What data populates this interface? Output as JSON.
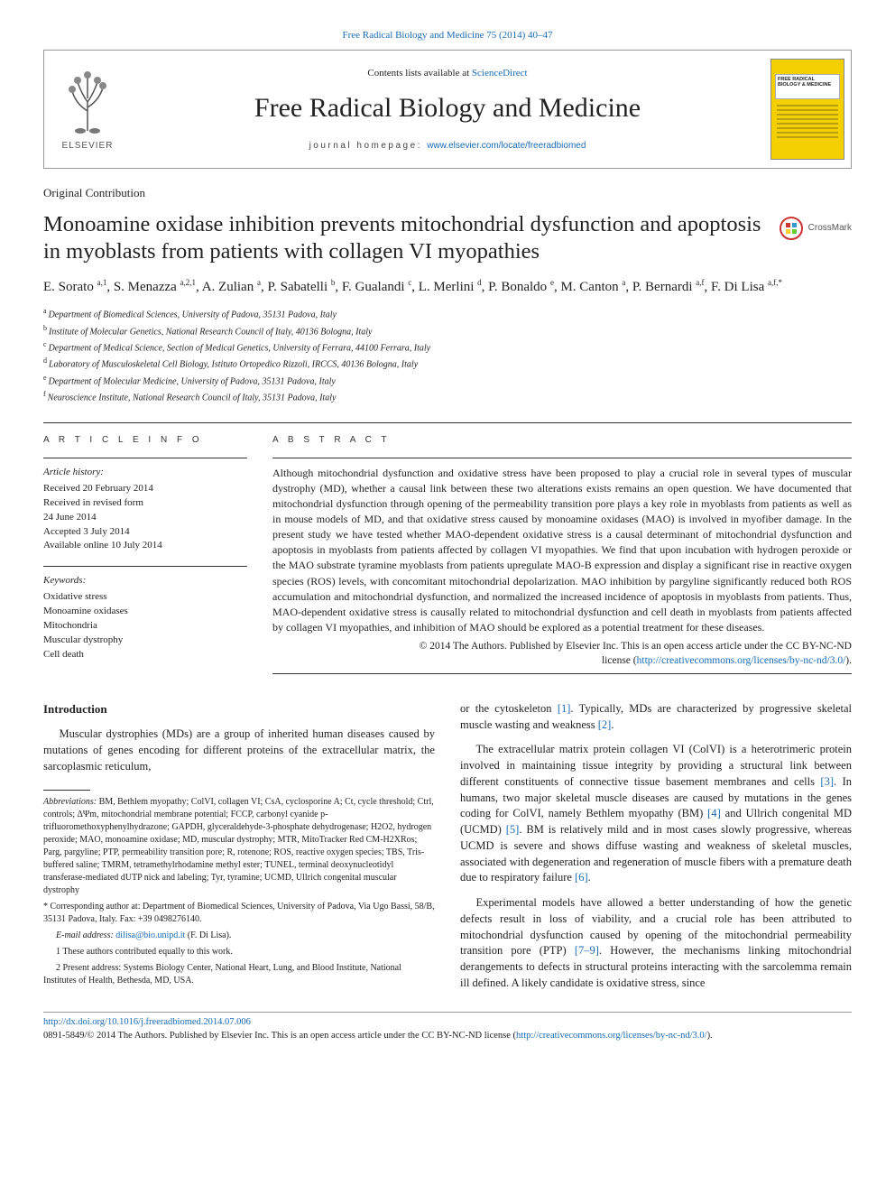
{
  "top_link": {
    "text": "Free Radical Biology and Medicine 75 (2014) 40–47"
  },
  "masthead": {
    "contents_prefix": "Contents lists available at ",
    "contents_link": "ScienceDirect",
    "journal_name": "Free Radical Biology and Medicine",
    "homepage_prefix": "journal homepage: ",
    "homepage_link": "www.elsevier.com/locate/freeradbiomed",
    "publisher": "ELSEVIER",
    "cover_text": "FREE RADICAL BIOLOGY & MEDICINE"
  },
  "article_type": "Original Contribution",
  "title": "Monoamine oxidase inhibition prevents mitochondrial dysfunction and apoptosis in myoblasts from patients with collagen VI myopathies",
  "crossmark": "CrossMark",
  "authors_html": "E. Sorato <sup>a,1</sup>, S. Menazza <sup>a,2,1</sup>, A. Zulian <sup>a</sup>, P. Sabatelli <sup>b</sup>, F. Gualandi <sup>c</sup>, L. Merlini <sup>d</sup>, P. Bonaldo <sup>e</sup>, M. Canton <sup>a</sup>, P. Bernardi <sup>a,f</sup>, F. Di Lisa <sup>a,f,*</sup>",
  "affiliations": [
    {
      "sup": "a",
      "text": "Department of Biomedical Sciences, University of Padova, 35131 Padova, Italy"
    },
    {
      "sup": "b",
      "text": "Institute of Molecular Genetics, National Research Council of Italy, 40136 Bologna, Italy"
    },
    {
      "sup": "c",
      "text": "Department of Medical Science, Section of Medical Genetics, University of Ferrara, 44100 Ferrara, Italy"
    },
    {
      "sup": "d",
      "text": "Laboratory of Musculoskeletal Cell Biology, Istituto Ortopedico Rizzoli, IRCCS, 40136 Bologna, Italy"
    },
    {
      "sup": "e",
      "text": "Department of Molecular Medicine, University of Padova, 35131 Padova, Italy"
    },
    {
      "sup": "f",
      "text": "Neuroscience Institute, National Research Council of Italy, 35131 Padova, Italy"
    }
  ],
  "info": {
    "head": "A R T I C L E   I N F O",
    "history_label": "Article history:",
    "history": [
      "Received 20 February 2014",
      "Received in revised form",
      "24 June 2014",
      "Accepted 3 July 2014",
      "Available online 10 July 2014"
    ],
    "keywords_label": "Keywords:",
    "keywords": [
      "Oxidative stress",
      "Monoamine oxidases",
      "Mitochondria",
      "Muscular dystrophy",
      "Cell death"
    ]
  },
  "abstract": {
    "head": "A B S T R A C T",
    "text": "Although mitochondrial dysfunction and oxidative stress have been proposed to play a crucial role in several types of muscular dystrophy (MD), whether a causal link between these two alterations exists remains an open question. We have documented that mitochondrial dysfunction through opening of the permeability transition pore plays a key role in myoblasts from patients as well as in mouse models of MD, and that oxidative stress caused by monoamine oxidases (MAO) is involved in myofiber damage. In the present study we have tested whether MAO-dependent oxidative stress is a causal determinant of mitochondrial dysfunction and apoptosis in myoblasts from patients affected by collagen VI myopathies. We find that upon incubation with hydrogen peroxide or the MAO substrate tyramine myoblasts from patients upregulate MAO-B expression and display a significant rise in reactive oxygen species (ROS) levels, with concomitant mitochondrial depolarization. MAO inhibition by pargyline significantly reduced both ROS accumulation and mitochondrial dysfunction, and normalized the increased incidence of apoptosis in myoblasts from patients. Thus, MAO-dependent oxidative stress is causally related to mitochondrial dysfunction and cell death in myoblasts from patients affected by collagen VI myopathies, and inhibition of MAO should be explored as a potential treatment for these diseases.",
    "copyright_line1": "© 2014 The Authors. Published by Elsevier Inc. This is an open access article under the CC BY-NC-ND",
    "copyright_line2_prefix": "license (",
    "copyright_link": "http://creativecommons.org/licenses/by-nc-nd/3.0/",
    "copyright_line2_suffix": ")."
  },
  "body": {
    "intro_head": "Introduction",
    "p1": "Muscular dystrophies (MDs) are a group of inherited human diseases caused by mutations of genes encoding for different proteins of the extracellular matrix, the sarcoplasmic reticulum,",
    "p2_prefix": "or the cytoskeleton ",
    "ref1": "[1]",
    "p2_mid": ". Typically, MDs are characterized by progressive skeletal muscle wasting and weakness ",
    "ref2": "[2]",
    "p2_suffix": ".",
    "p3_a": "The extracellular matrix protein collagen VI (ColVI) is a heterotrimeric protein involved in maintaining tissue integrity by providing a structural link between different constituents of connective tissue basement membranes and cells ",
    "ref3": "[3]",
    "p3_b": ". In humans, two major skeletal muscle diseases are caused by mutations in the genes coding for ColVI, namely Bethlem myopathy (BM) ",
    "ref4": "[4]",
    "p3_c": " and Ullrich congenital MD (UCMD) ",
    "ref5": "[5]",
    "p3_d": ". BM is relatively mild and in most cases slowly progressive, whereas UCMD is severe and shows diffuse wasting and weakness of skeletal muscles, associated with degeneration and regeneration of muscle fibers with a premature death due to respiratory failure ",
    "ref6": "[6]",
    "p3_e": ".",
    "p4_a": "Experimental models have allowed a better understanding of how the genetic defects result in loss of viability, and a crucial role has been attributed to mitochondrial dysfunction caused by opening of the mitochondrial permeability transition pore (PTP) ",
    "ref7_9": "[7–9]",
    "p4_b": ". However, the mechanisms linking mitochondrial derangements to defects in structural proteins interacting with the sarcolemma remain ill defined. A likely candidate is oxidative stress, since"
  },
  "footnotes": {
    "abbrev_label": "Abbreviations:",
    "abbrev_text": " BM, Bethlem myopathy; ColVI, collagen VI; CsA, cyclosporine A; Ct, cycle threshold; Ctrl, controls; ΔΨm, mitochondrial membrane potential; FCCP, carbonyl cyanide p-trifluoromethoxyphenylhydrazone; GAPDH, glyceraldehyde-3-phosphate dehydrogenase; H2O2, hydrogen peroxide; MAO, monoamine oxidase; MD, muscular dystrophy; MTR, MitoTracker Red CM-H2XRos; Parg, pargyline; PTP, permeability transition pore; R, rotenone; ROS, reactive oxygen species; TBS, Tris-buffered saline; TMRM, tetramethylrhodamine methyl ester; TUNEL, terminal deoxynucleotidyl transferase-mediated dUTP nick and labeling; Tyr, tyramine; UCMD, Ullrich congenital muscular dystrophy",
    "corr": "* Corresponding author at: Department of Biomedical Sciences, University of Padova, Via Ugo Bassi, 58/B, 35131 Padova, Italy. Fax: +39 0498276140.",
    "email_label": "E-mail address: ",
    "email": "dilisa@bio.unipd.it",
    "email_suffix": " (F. Di Lisa).",
    "note1": "1 These authors contributed equally to this work.",
    "note2": "2 Present address: Systems Biology Center, National Heart, Lung, and Blood Institute, National Institutes of Health, Bethesda, MD, USA."
  },
  "footer": {
    "doi": "http://dx.doi.org/10.1016/j.freeradbiomed.2014.07.006",
    "license_prefix": "0891-5849/© 2014 The Authors. Published by Elsevier Inc. This is an open access article under the CC BY-NC-ND license (",
    "license_link": "http://creativecommons.org/licenses/by-nc-nd/3.0/",
    "license_suffix": ")."
  },
  "colors": {
    "link": "#1a6bb5",
    "border": "#999999",
    "cover_bg": "#f5d000",
    "text": "#222222"
  }
}
